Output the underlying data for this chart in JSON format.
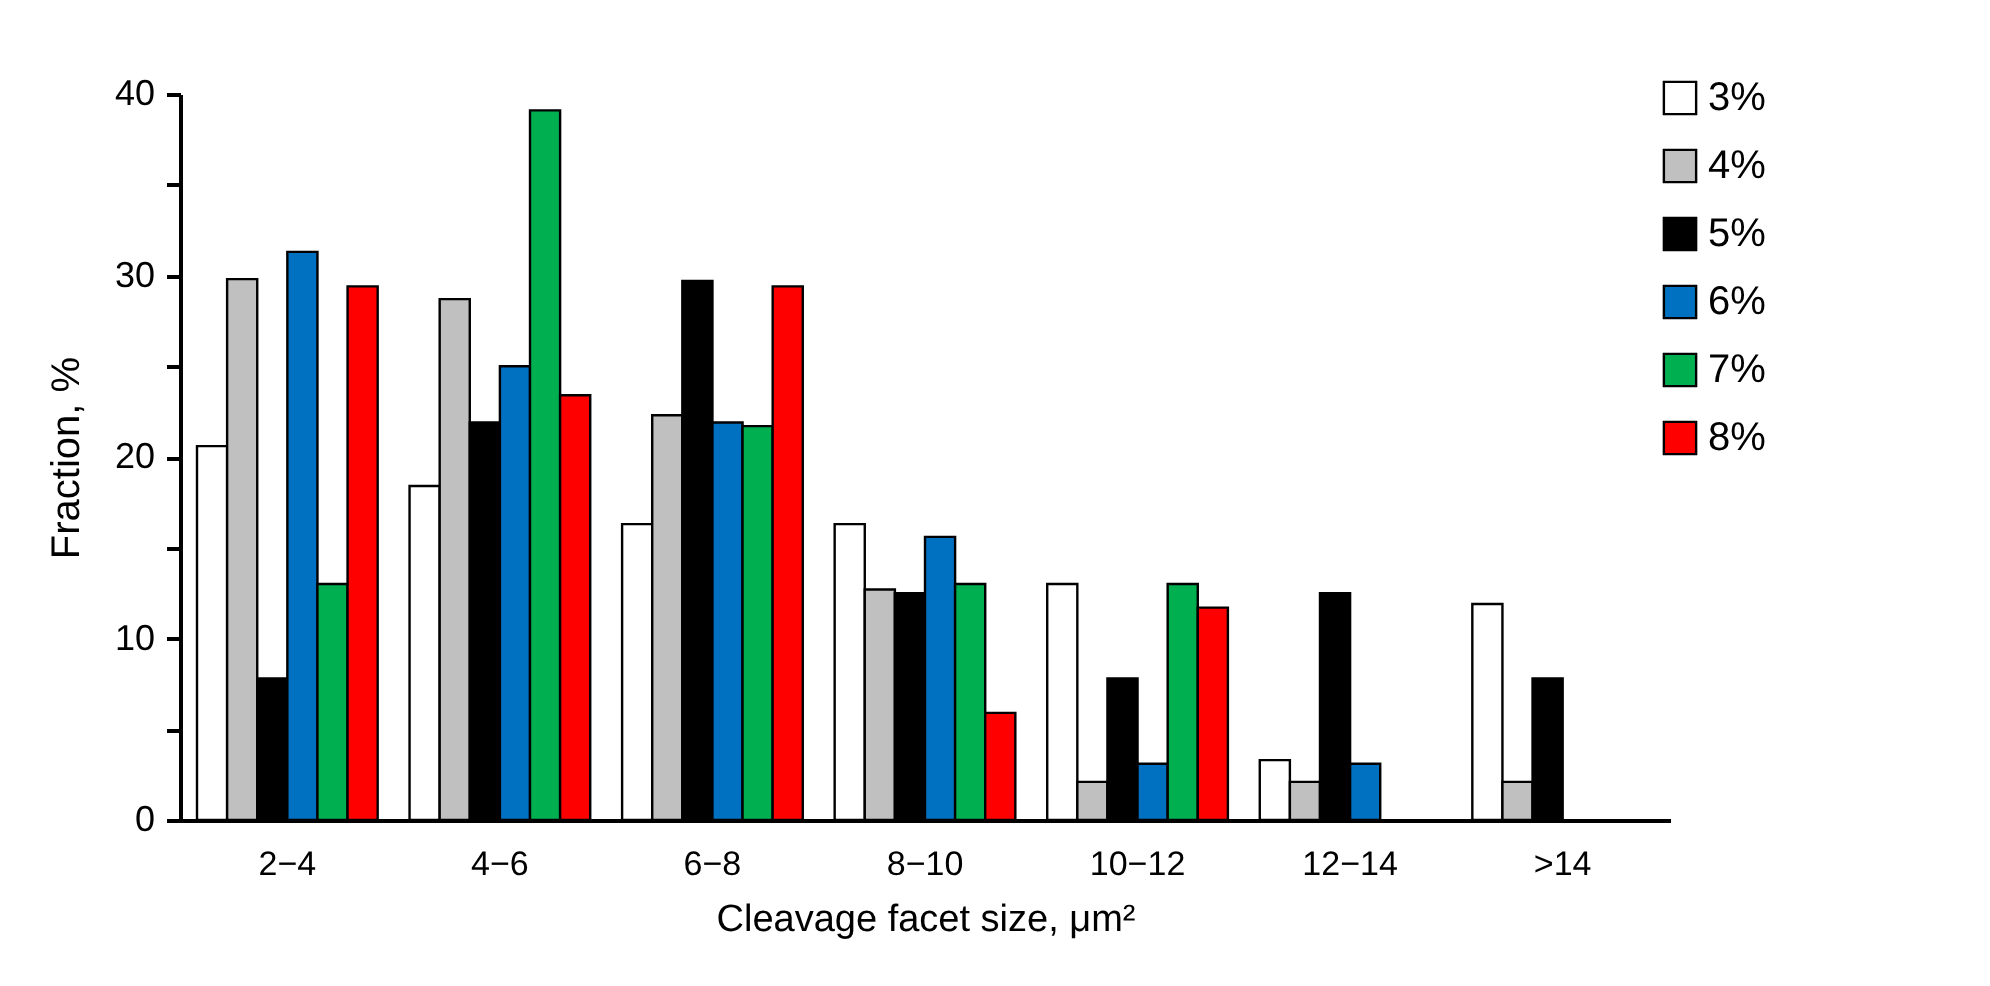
{
  "chart_data": {
    "type": "bar",
    "xlabel": "Cleavage facet size, μm²",
    "ylabel": "Fraction, %",
    "categories": [
      "2−4",
      "4−6",
      "6−8",
      "8−10",
      "10−12",
      "12−14",
      ">14"
    ],
    "series": [
      {
        "name": "3%",
        "color": "#ffffff",
        "values": [
          20.6,
          18.4,
          16.3,
          16.3,
          13.0,
          3.3,
          11.9
        ]
      },
      {
        "name": "4%",
        "color": "#c0c0c0",
        "values": [
          29.8,
          28.7,
          22.3,
          12.7,
          2.1,
          2.1,
          2.1
        ]
      },
      {
        "name": "5%",
        "color": "#000000",
        "values": [
          7.8,
          21.9,
          29.7,
          12.5,
          7.8,
          12.5,
          7.8
        ]
      },
      {
        "name": "6%",
        "color": "#0070c0",
        "values": [
          31.3,
          25.0,
          21.9,
          15.6,
          3.1,
          3.1,
          null
        ]
      },
      {
        "name": "7%",
        "color": "#00b050",
        "values": [
          13.0,
          39.1,
          21.7,
          13.0,
          13.0,
          null,
          null
        ]
      },
      {
        "name": "8%",
        "color": "#ff0000",
        "values": [
          29.4,
          23.4,
          29.4,
          5.9,
          11.7,
          null,
          null
        ]
      }
    ],
    "ylim": [
      0,
      40
    ],
    "yticks": [
      0,
      {
        "value": 5,
        "label": null
      },
      10,
      {
        "value": 15,
        "label": null
      },
      20,
      {
        "value": 25,
        "label": null
      },
      30,
      {
        "value": 35,
        "label": null
      },
      40
    ],
    "grid": false,
    "legend": "top right"
  }
}
